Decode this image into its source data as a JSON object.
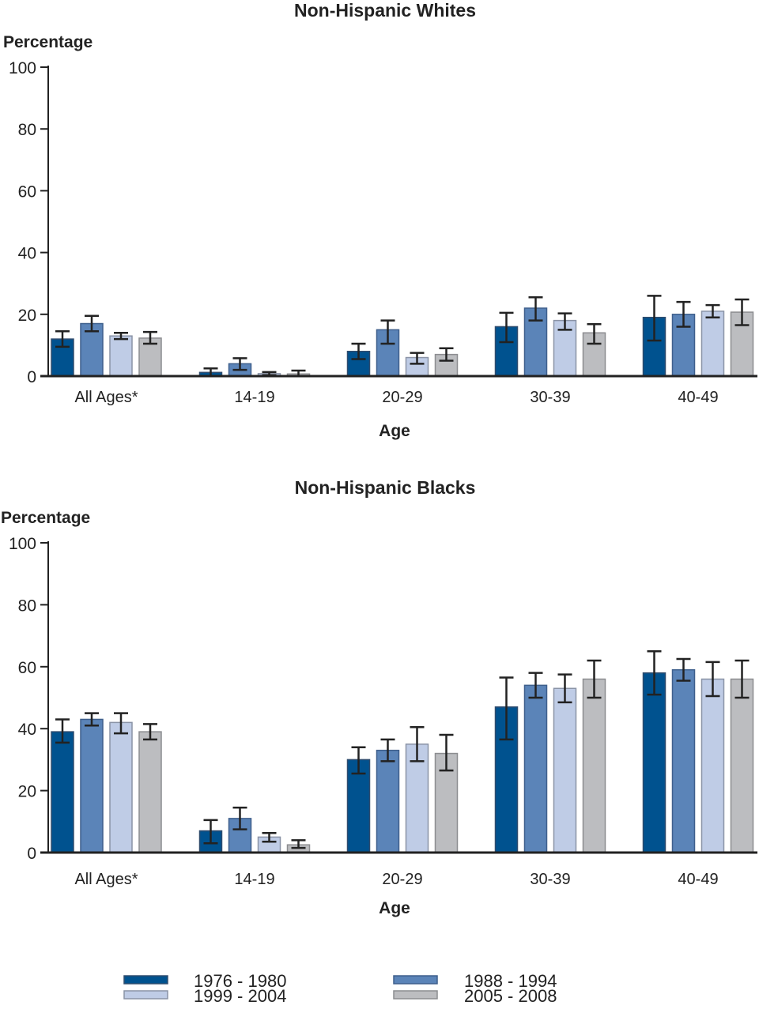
{
  "chart_data": [
    {
      "type": "bar",
      "title": "Non-Hispanic Whites",
      "ylabel": "Percentage",
      "xlabel": "Age",
      "ylim": [
        0,
        100
      ],
      "yticks": [
        0,
        20,
        40,
        60,
        80,
        100
      ],
      "grid": false,
      "categories": [
        "All Ages*",
        "14-19",
        "20-29",
        "30-39",
        "40-49"
      ],
      "series": [
        {
          "name": "1976 - 1980",
          "values": [
            12,
            1.2,
            8,
            16,
            19
          ],
          "err_low": [
            9.5,
            0,
            5.5,
            11,
            11.5
          ],
          "err_high": [
            14.5,
            2.5,
            10.5,
            20.5,
            26
          ]
        },
        {
          "name": "1988 - 1994",
          "values": [
            17,
            4,
            15,
            22,
            20
          ],
          "err_low": [
            14.5,
            2,
            10.5,
            18,
            16
          ],
          "err_high": [
            19.5,
            5.8,
            18,
            25.5,
            24
          ]
        },
        {
          "name": "1999 - 2004",
          "values": [
            13,
            0.8,
            6,
            18,
            21
          ],
          "err_low": [
            12,
            0.3,
            4,
            15,
            19
          ],
          "err_high": [
            14,
            1.3,
            7.5,
            20.3,
            23
          ]
        },
        {
          "name": "2005 - 2008",
          "values": [
            12.3,
            0.7,
            7,
            14,
            20.7
          ],
          "err_low": [
            10.5,
            0,
            5,
            10.5,
            16.5
          ],
          "err_high": [
            14.3,
            1.8,
            9,
            16.8,
            24.8
          ]
        }
      ]
    },
    {
      "type": "bar",
      "title": "Non-Hispanic Blacks",
      "ylabel": "Percentage",
      "xlabel": "Age",
      "ylim": [
        0,
        100
      ],
      "yticks": [
        0,
        20,
        40,
        60,
        80,
        100
      ],
      "grid": false,
      "categories": [
        "All Ages*",
        "14-19",
        "20-29",
        "30-39",
        "40-49"
      ],
      "series": [
        {
          "name": "1976 - 1980",
          "values": [
            39,
            7,
            30,
            47,
            58
          ],
          "err_low": [
            35.5,
            3,
            25.5,
            36.5,
            51
          ],
          "err_high": [
            43,
            10.5,
            34,
            56.5,
            65
          ]
        },
        {
          "name": "1988 - 1994",
          "values": [
            43,
            11,
            33,
            54,
            59
          ],
          "err_low": [
            41,
            7.5,
            29.5,
            50,
            55.5
          ],
          "err_high": [
            45,
            14.5,
            36.5,
            58,
            62.5
          ]
        },
        {
          "name": "1999 - 2004",
          "values": [
            42,
            5,
            35,
            53,
            56
          ],
          "err_low": [
            38.5,
            3.5,
            29.5,
            48.5,
            50.5
          ],
          "err_high": [
            45,
            6.3,
            40.5,
            57.5,
            61.5
          ]
        },
        {
          "name": "2005 - 2008",
          "values": [
            39,
            2.5,
            32,
            56,
            56
          ],
          "err_low": [
            36.5,
            1.5,
            26.5,
            50,
            50
          ],
          "err_high": [
            41.5,
            4,
            38,
            62,
            62
          ]
        }
      ]
    }
  ],
  "legend": {
    "placement": "bottom",
    "items": [
      "1976 - 1980",
      "1988 - 1994",
      "1999 - 2004",
      "2005 - 2008"
    ]
  },
  "colors": [
    "#00528f",
    "#5b84b8",
    "#bfcce6",
    "#bcbdc0"
  ]
}
